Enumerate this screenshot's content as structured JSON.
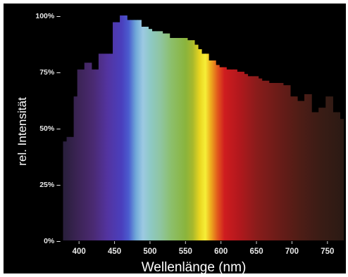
{
  "chart_data": {
    "type": "bar",
    "title": "",
    "xlabel": "Wellenlänge (nm)",
    "ylabel": "rel. Intensität",
    "xlim": [
      376,
      776
    ],
    "ylim": [
      0,
      100
    ],
    "x_ticks": [
      400,
      450,
      500,
      550,
      600,
      650,
      700,
      750
    ],
    "x_tick_labels": [
      "400",
      "450",
      "500",
      "550",
      "600",
      "650",
      "700",
      "750"
    ],
    "y_ticks": [
      0,
      25,
      50,
      75,
      100
    ],
    "y_tick_labels": [
      "0% –",
      "25% –",
      "50% –",
      "75% –",
      "100% –"
    ],
    "bin_width_nm": 5,
    "series": [
      {
        "x": [
          380,
          385,
          390,
          395,
          400,
          405,
          410,
          415,
          420,
          425,
          430,
          435,
          440,
          445,
          450,
          455,
          460,
          465,
          470,
          475,
          480,
          485,
          490,
          495,
          500,
          505,
          510,
          515,
          520,
          525,
          530,
          535,
          540,
          545,
          550,
          555,
          560,
          565,
          570,
          575,
          580,
          585,
          590,
          595,
          600,
          605,
          610,
          615,
          620,
          625,
          630,
          635,
          640,
          645,
          650,
          655,
          660,
          665,
          670,
          675,
          680,
          685,
          690,
          695,
          700,
          705,
          710,
          715,
          720,
          725,
          730,
          735,
          740,
          745,
          750,
          755,
          760,
          765,
          770
        ],
        "values": [
          44,
          46,
          46,
          64,
          76,
          76,
          79,
          79,
          76,
          76,
          83,
          83,
          83,
          83,
          97,
          97,
          100,
          100,
          98,
          98,
          98,
          98,
          95,
          95,
          94,
          93,
          93,
          93,
          92,
          92,
          90,
          90,
          90,
          90,
          90,
          89,
          89,
          87,
          85,
          83,
          83,
          80,
          80,
          78,
          77,
          77,
          76,
          76,
          76,
          75,
          75,
          74,
          73,
          73,
          73,
          72,
          71,
          71,
          70,
          70,
          70,
          70,
          69,
          69,
          64,
          64,
          62,
          62,
          65,
          65,
          57,
          57,
          59,
          59,
          64,
          64,
          57,
          57,
          54
        ]
      }
    ],
    "colors": {
      "background": "#000000",
      "spectrum_stops": [
        {
          "nm": 380,
          "color": "#2a1f3d"
        },
        {
          "nm": 400,
          "color": "#3d2457"
        },
        {
          "nm": 420,
          "color": "#4a2a72"
        },
        {
          "nm": 440,
          "color": "#5334a0"
        },
        {
          "nm": 460,
          "color": "#4a3fbd"
        },
        {
          "nm": 470,
          "color": "#4b5ccf"
        },
        {
          "nm": 480,
          "color": "#6fa8d8"
        },
        {
          "nm": 490,
          "color": "#9cc9e2"
        },
        {
          "nm": 500,
          "color": "#8ec9c6"
        },
        {
          "nm": 515,
          "color": "#8fc5a0"
        },
        {
          "nm": 530,
          "color": "#8cbf6b"
        },
        {
          "nm": 550,
          "color": "#8ab43d"
        },
        {
          "nm": 560,
          "color": "#a7b82c"
        },
        {
          "nm": 570,
          "color": "#e9d520"
        },
        {
          "nm": 578,
          "color": "#f6ef37"
        },
        {
          "nm": 585,
          "color": "#eeb21e"
        },
        {
          "nm": 595,
          "color": "#e25a1c"
        },
        {
          "nm": 605,
          "color": "#cf1c1f"
        },
        {
          "nm": 625,
          "color": "#b3181d"
        },
        {
          "nm": 650,
          "color": "#8a1c1b"
        },
        {
          "nm": 680,
          "color": "#6b1c18"
        },
        {
          "nm": 710,
          "color": "#4f1d16"
        },
        {
          "nm": 740,
          "color": "#3a1c15"
        },
        {
          "nm": 776,
          "color": "#2a1a14"
        }
      ]
    }
  }
}
